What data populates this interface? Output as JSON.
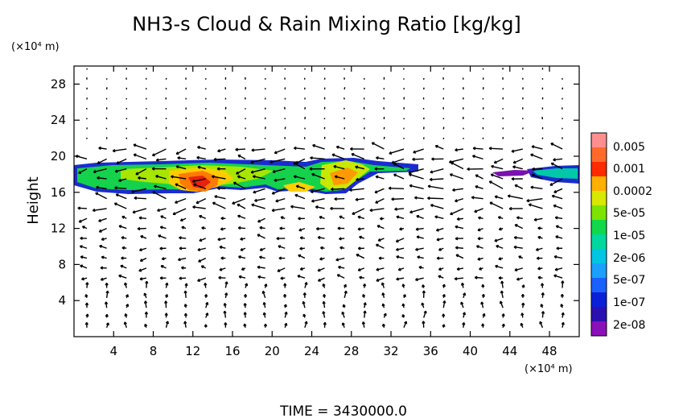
{
  "chart_data": {
    "type": "heatmap",
    "title": "NH3-s Cloud & Rain Mixing Ratio [kg/kg]",
    "ylabel": "Height",
    "y_units": "(×10⁴ m)",
    "x_units": "(×10⁴ m)",
    "footer": "TIME = 3430000.0",
    "xlim": [
      0,
      51
    ],
    "ylim": [
      0,
      30
    ],
    "x_ticks": [
      4,
      8,
      12,
      16,
      20,
      24,
      28,
      32,
      36,
      40,
      44,
      48
    ],
    "x_tick_labels": [
      "4",
      "8",
      "12",
      "16",
      "20",
      "24",
      "28",
      "32",
      "36",
      "40",
      "44",
      "48"
    ],
    "y_ticks": [
      4,
      8,
      12,
      16,
      20,
      24,
      28
    ],
    "y_tick_labels": [
      "4",
      "8",
      "12",
      "16",
      "20",
      "24",
      "28"
    ],
    "colorbar": {
      "labels": [
        "0.005",
        "0.001",
        "0.0002",
        "5e-05",
        "1e-05",
        "2e-06",
        "5e-07",
        "1e-07",
        "2e-08"
      ],
      "colors": [
        "#ff8f8f",
        "#ff6a2a",
        "#ff2a00",
        "#ffb000",
        "#d8e800",
        "#7de300",
        "#10d84a",
        "#00d8a0",
        "#00c6e4",
        "#1aa0ff",
        "#1a60ff",
        "#0a20d8",
        "#2a10b0",
        "#8a10b8"
      ]
    },
    "cloud_layer": [
      {
        "x": [
          0,
          35
        ],
        "y": [
          15.5,
          19.5
        ],
        "level": "1e-07"
      },
      {
        "x": [
          1,
          34
        ],
        "y": [
          16,
          19
        ],
        "level": "5e-05"
      },
      {
        "x": [
          10,
          15
        ],
        "y": [
          15.8,
          18.5
        ],
        "level": "0.0002"
      },
      {
        "x": [
          12,
          14
        ],
        "y": [
          16.3,
          17.8
        ],
        "level": "0.001"
      },
      {
        "x": [
          25,
          29
        ],
        "y": [
          16,
          19.8
        ],
        "level": "1e-05"
      },
      {
        "x": [
          42,
          45
        ],
        "y": [
          17.3,
          18.2
        ],
        "level": "2e-08"
      },
      {
        "x": [
          45,
          51
        ],
        "y": [
          16.5,
          19
        ],
        "level": "1e-06"
      }
    ],
    "wind_field": "vector arrows on grid"
  }
}
